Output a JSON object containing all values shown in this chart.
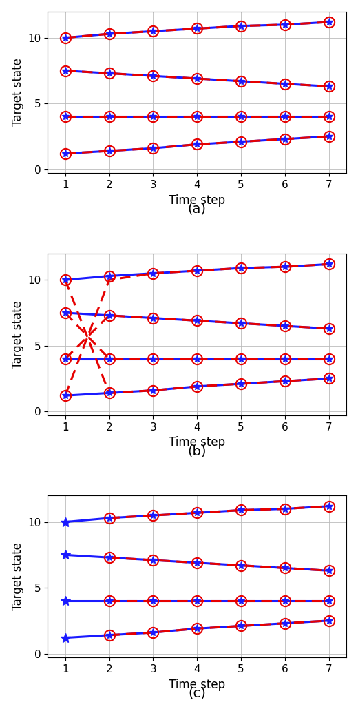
{
  "time_steps": [
    1,
    2,
    3,
    4,
    5,
    6,
    7
  ],
  "trajectories": [
    [
      1.2,
      1.4,
      1.6,
      1.9,
      2.1,
      2.3,
      2.5
    ],
    [
      4.0,
      4.0,
      4.0,
      4.0,
      4.0,
      4.0,
      4.0
    ],
    [
      7.5,
      7.3,
      7.1,
      6.9,
      6.7,
      6.5,
      6.3
    ],
    [
      10.0,
      10.3,
      10.5,
      10.7,
      10.9,
      11.0,
      11.2
    ]
  ],
  "subplot_b_red_trajs": [
    [
      1.2,
      10.0,
      10.5,
      10.7,
      10.9,
      11.0,
      11.2
    ],
    [
      4.0,
      7.3,
      7.1,
      6.9,
      6.7,
      6.5,
      6.3
    ],
    [
      7.5,
      4.0,
      4.0,
      4.0,
      4.0,
      4.0,
      4.0
    ],
    [
      10.0,
      1.4,
      1.6,
      1.9,
      2.1,
      2.3,
      2.5
    ]
  ],
  "blue_color": "#1a1aff",
  "red_color": "#e60000",
  "line_width": 2.2,
  "ylim": [
    -0.3,
    12.0
  ],
  "yticks": [
    0,
    5,
    10
  ],
  "xlim": [
    0.6,
    7.4
  ],
  "xticks": [
    1,
    2,
    3,
    4,
    5,
    6,
    7
  ],
  "xlabel": "Time step",
  "ylabel": "Target state",
  "label_a": "(a)",
  "label_b": "(b)",
  "label_c": "(c)",
  "fig_width": 5.2,
  "fig_height": 10.32,
  "dpi": 100,
  "grid_color": "#bbbbbb",
  "circle_size": 11,
  "star_size": 8,
  "circle_lw": 1.5
}
